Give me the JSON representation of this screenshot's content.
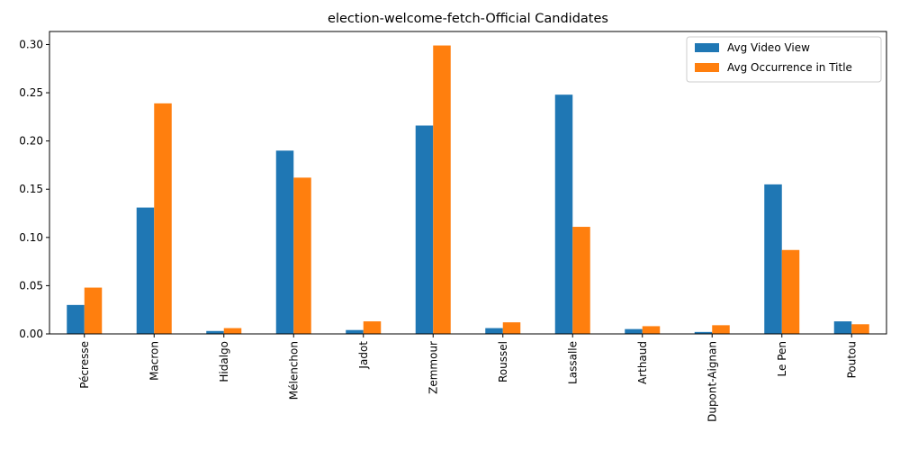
{
  "chart_data": {
    "type": "bar",
    "title": "election-welcome-fetch-Official Candidates",
    "xlabel": "",
    "ylabel": "",
    "ylim": [
      0,
      0.3135
    ],
    "yticks": [
      "0.00",
      "0.05",
      "0.10",
      "0.15",
      "0.20",
      "0.25",
      "0.30"
    ],
    "categories": [
      "Pécresse",
      "Macron",
      "Hidalgo",
      "Mélenchon",
      "Jadot",
      "Zemmour",
      "Roussel",
      "Lassalle",
      "Arthaud",
      "Dupont-Aignan",
      "Le Pen",
      "Poutou"
    ],
    "series": [
      {
        "name": "Avg Video View",
        "color": "#1f77b4",
        "values": [
          0.03,
          0.131,
          0.003,
          0.19,
          0.004,
          0.216,
          0.006,
          0.248,
          0.005,
          0.002,
          0.155,
          0.013
        ]
      },
      {
        "name": "Avg Occurrence in Title",
        "color": "#ff7f0e",
        "values": [
          0.048,
          0.239,
          0.006,
          0.162,
          0.013,
          0.299,
          0.012,
          0.111,
          0.008,
          0.009,
          0.087,
          0.01
        ]
      }
    ],
    "legend_position": "top-right",
    "grid": false
  }
}
